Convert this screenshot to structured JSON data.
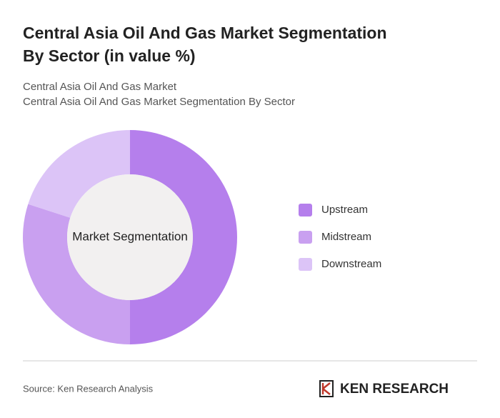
{
  "chart_data": {
    "type": "pie",
    "title": "Central Asia Oil And Gas Market Segmentation By Sector (in value %)",
    "subtitle": [
      "Central Asia Oil And Gas Market",
      "Central Asia Oil And Gas Market Segmentation By Sector"
    ],
    "center_label": "Market Segmentation",
    "categories": [
      "Upstream",
      "Midstream",
      "Downstream"
    ],
    "values": [
      50,
      30,
      20
    ],
    "colors": [
      "#b57fec",
      "#c9a0f0",
      "#dcc4f7"
    ],
    "source": "Source: Ken Research Analysis",
    "logo": "KEN RESEARCH"
  }
}
